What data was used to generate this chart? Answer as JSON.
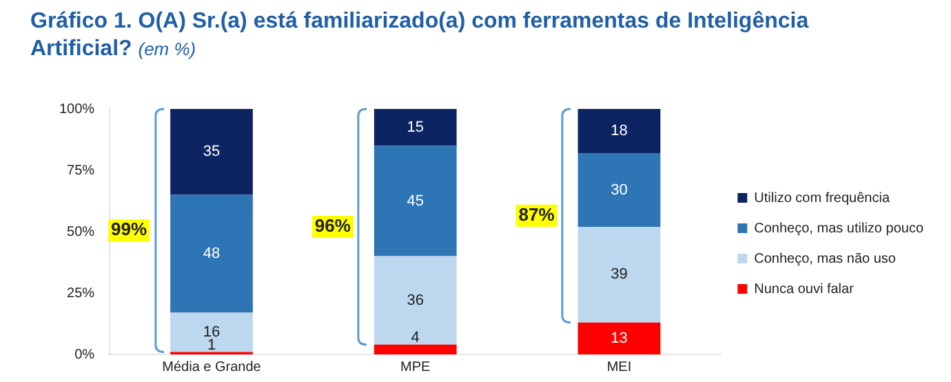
{
  "chart_data": {
    "type": "bar",
    "title": "Gráfico 1. O(A) Sr.(a) está familiarizado(a) com ferramentas de Inteligência Artificial?",
    "subtitle": "(em %)",
    "categories": [
      "Média e Grande",
      "MPE",
      "MEI"
    ],
    "stacked": true,
    "data_labels": true,
    "legend": "right",
    "grid": false,
    "ylim": [
      0,
      100
    ],
    "yticks": [
      {
        "value": 0,
        "label": "0%"
      },
      {
        "value": 25,
        "label": "25%"
      },
      {
        "value": 50,
        "label": "50%"
      },
      {
        "value": 75,
        "label": "75%"
      },
      {
        "value": 100,
        "label": "100%"
      }
    ],
    "series": [
      {
        "name": "Nunca ouvi falar",
        "color": "#ff0000",
        "values": [
          1,
          4,
          13
        ]
      },
      {
        "name": "Conheço, mas não uso",
        "color": "#bdd7ee",
        "values": [
          16,
          36,
          39
        ]
      },
      {
        "name": "Conheço, mas utilizo pouco",
        "color": "#2e75b6",
        "values": [
          48,
          45,
          30
        ]
      },
      {
        "name": "Utilizo com frequência",
        "color": "#0c2461",
        "values": [
          35,
          15,
          18
        ]
      }
    ],
    "annotations": [
      "99%",
      "96%",
      "87%"
    ]
  }
}
